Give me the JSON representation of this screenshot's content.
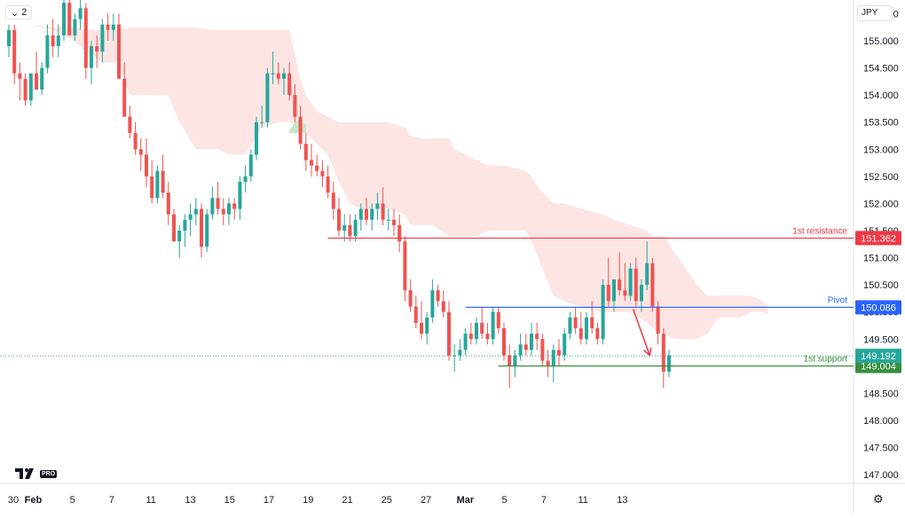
{
  "toolbar": {
    "collapse_label": "2",
    "currency": "JPY"
  },
  "branding": {
    "pro_badge": "PRO"
  },
  "chart_data": {
    "type": "candlestick",
    "ylim": [
      146.8,
      156.1
    ],
    "y_ticks": [
      "147.000",
      "147.500",
      "148.000",
      "148.500",
      "149.000",
      "149.500",
      "150.000",
      "150.500",
      "151.000",
      "151.500",
      "152.000",
      "152.500",
      "153.000",
      "153.500",
      "154.000",
      "154.500",
      "155.000",
      "155.500"
    ],
    "x_ticks": [
      "30",
      "Feb",
      "5",
      "7",
      "11",
      "13",
      "15",
      "17",
      "19",
      "21",
      "25",
      "27",
      "Mar",
      "5",
      "7",
      "11",
      "13"
    ],
    "x_tick_bold": [
      "Feb",
      "Mar"
    ],
    "bar_hours": 4,
    "start_date": "2024-01-30",
    "candles": [
      [
        154.9,
        155.3,
        154.7,
        155.2
      ],
      [
        155.2,
        155.3,
        154.2,
        154.4
      ],
      [
        154.4,
        154.6,
        153.9,
        154.3
      ],
      [
        154.3,
        154.4,
        153.8,
        153.9
      ],
      [
        153.9,
        154.4,
        153.8,
        154.4
      ],
      [
        154.4,
        154.8,
        154.1,
        154.1
      ],
      [
        154.1,
        154.6,
        154.0,
        154.5
      ],
      [
        154.5,
        155.3,
        154.4,
        155.1
      ],
      [
        155.1,
        155.4,
        154.7,
        154.9
      ],
      [
        154.9,
        155.3,
        154.7,
        155.1
      ],
      [
        155.1,
        155.9,
        155.0,
        155.7
      ],
      [
        155.7,
        156.0,
        155.1,
        155.1
      ],
      [
        155.1,
        155.5,
        155.0,
        155.4
      ],
      [
        155.4,
        156.0,
        155.2,
        155.6
      ],
      [
        155.6,
        155.7,
        154.3,
        154.5
      ],
      [
        154.5,
        155.0,
        154.2,
        154.9
      ],
      [
        154.9,
        155.1,
        154.5,
        154.8
      ],
      [
        154.8,
        155.4,
        154.6,
        155.3
      ],
      [
        155.3,
        155.5,
        155.0,
        155.2
      ],
      [
        155.2,
        155.5,
        155.0,
        155.3
      ],
      [
        155.3,
        155.5,
        154.3,
        154.3
      ],
      [
        154.3,
        154.6,
        153.6,
        153.6
      ],
      [
        153.6,
        153.8,
        153.2,
        153.3
      ],
      [
        153.3,
        153.5,
        152.9,
        153.0
      ],
      [
        153.0,
        153.2,
        152.6,
        152.9
      ],
      [
        152.9,
        153.2,
        152.3,
        152.5
      ],
      [
        152.5,
        152.8,
        152.0,
        152.1
      ],
      [
        152.1,
        152.7,
        152.0,
        152.6
      ],
      [
        152.6,
        152.9,
        152.1,
        152.2
      ],
      [
        152.2,
        152.4,
        151.6,
        151.8
      ],
      [
        151.8,
        151.9,
        151.3,
        151.3
      ],
      [
        151.3,
        151.6,
        151.0,
        151.5
      ],
      [
        151.5,
        151.8,
        151.2,
        151.7
      ],
      [
        151.7,
        152.0,
        151.4,
        151.8
      ],
      [
        151.8,
        152.1,
        151.6,
        151.9
      ],
      [
        151.9,
        152.0,
        151.0,
        151.2
      ],
      [
        151.2,
        151.9,
        151.1,
        151.8
      ],
      [
        151.8,
        152.3,
        151.7,
        152.1
      ],
      [
        152.1,
        152.4,
        151.8,
        151.9
      ],
      [
        151.9,
        152.1,
        151.6,
        151.8
      ],
      [
        151.8,
        152.1,
        151.6,
        152.0
      ],
      [
        152.0,
        152.1,
        151.7,
        151.9
      ],
      [
        151.9,
        152.5,
        151.7,
        152.4
      ],
      [
        152.4,
        152.7,
        152.2,
        152.5
      ],
      [
        152.5,
        153.0,
        152.4,
        152.9
      ],
      [
        152.9,
        153.6,
        152.8,
        153.5
      ],
      [
        153.5,
        153.8,
        153.4,
        153.5
      ],
      [
        153.5,
        154.5,
        153.4,
        154.4
      ],
      [
        154.4,
        154.8,
        154.2,
        154.4
      ],
      [
        154.4,
        154.6,
        154.2,
        154.3
      ],
      [
        154.3,
        154.5,
        154.0,
        154.4
      ],
      [
        154.4,
        154.6,
        153.9,
        154.0
      ],
      [
        154.0,
        154.2,
        153.5,
        153.6
      ],
      [
        153.6,
        153.8,
        153.0,
        153.1
      ],
      [
        153.1,
        153.3,
        152.6,
        152.8
      ],
      [
        152.8,
        153.1,
        152.5,
        152.7
      ],
      [
        152.7,
        152.9,
        152.5,
        152.6
      ],
      [
        152.6,
        152.8,
        152.3,
        152.5
      ],
      [
        152.5,
        152.7,
        152.1,
        152.2
      ],
      [
        152.2,
        152.4,
        151.7,
        151.9
      ],
      [
        151.9,
        152.1,
        151.4,
        151.5
      ],
      [
        151.5,
        151.8,
        151.3,
        151.6
      ],
      [
        151.6,
        151.8,
        151.3,
        151.4
      ],
      [
        151.4,
        151.8,
        151.3,
        151.7
      ],
      [
        151.7,
        152.0,
        151.5,
        151.9
      ],
      [
        151.9,
        152.1,
        151.6,
        151.7
      ],
      [
        151.7,
        152.0,
        151.5,
        151.9
      ],
      [
        151.9,
        152.2,
        151.7,
        152.0
      ],
      [
        152.0,
        152.3,
        151.6,
        151.7
      ],
      [
        151.7,
        151.9,
        151.5,
        151.7
      ],
      [
        151.7,
        151.9,
        151.4,
        151.6
      ],
      [
        151.6,
        151.8,
        151.1,
        151.3
      ],
      [
        151.3,
        151.4,
        150.2,
        150.4
      ],
      [
        150.4,
        150.6,
        150.0,
        150.1
      ],
      [
        150.1,
        150.3,
        149.7,
        149.8
      ],
      [
        149.8,
        150.2,
        149.5,
        149.6
      ],
      [
        149.6,
        150.0,
        149.4,
        149.9
      ],
      [
        149.9,
        150.6,
        149.8,
        150.4
      ],
      [
        150.4,
        150.5,
        150.1,
        150.2
      ],
      [
        150.2,
        150.4,
        149.9,
        150.0
      ],
      [
        150.0,
        150.2,
        149.1,
        149.2
      ],
      [
        149.2,
        149.4,
        148.9,
        149.2
      ],
      [
        149.2,
        149.5,
        149.1,
        149.3
      ],
      [
        149.3,
        149.7,
        149.2,
        149.6
      ],
      [
        149.6,
        149.8,
        149.4,
        149.5
      ],
      [
        149.5,
        149.9,
        149.4,
        149.8
      ],
      [
        149.8,
        150.1,
        149.5,
        149.6
      ],
      [
        149.6,
        149.8,
        149.4,
        149.5
      ],
      [
        149.5,
        150.1,
        149.4,
        150.0
      ],
      [
        150.0,
        150.1,
        149.6,
        149.7
      ],
      [
        149.7,
        149.8,
        149.1,
        149.2
      ],
      [
        149.2,
        149.4,
        148.6,
        149.0
      ],
      [
        149.0,
        149.3,
        148.8,
        149.2
      ],
      [
        149.2,
        149.6,
        149.1,
        149.4
      ],
      [
        149.4,
        149.6,
        149.2,
        149.3
      ],
      [
        149.3,
        149.8,
        149.2,
        149.6
      ],
      [
        149.6,
        149.8,
        149.3,
        149.5
      ],
      [
        149.5,
        149.6,
        149.0,
        149.1
      ],
      [
        149.1,
        149.3,
        148.8,
        149.0
      ],
      [
        149.0,
        149.4,
        148.7,
        149.3
      ],
      [
        149.3,
        149.5,
        149.0,
        149.2
      ],
      [
        149.2,
        149.7,
        149.1,
        149.6
      ],
      [
        149.6,
        150.0,
        149.5,
        149.9
      ],
      [
        149.9,
        150.1,
        149.6,
        149.7
      ],
      [
        149.7,
        150.0,
        149.4,
        149.5
      ],
      [
        149.5,
        150.0,
        149.4,
        149.9
      ],
      [
        149.9,
        150.2,
        149.6,
        149.7
      ],
      [
        149.7,
        149.8,
        149.4,
        149.5
      ],
      [
        149.5,
        150.6,
        149.4,
        150.5
      ],
      [
        150.5,
        151.0,
        150.1,
        150.2
      ],
      [
        150.2,
        150.6,
        150.0,
        150.6
      ],
      [
        150.6,
        151.1,
        150.3,
        150.4
      ],
      [
        150.4,
        150.9,
        150.2,
        150.3
      ],
      [
        150.3,
        150.9,
        150.2,
        150.8
      ],
      [
        150.8,
        151.0,
        150.1,
        150.2
      ],
      [
        150.2,
        150.6,
        150.0,
        150.5
      ],
      [
        150.5,
        151.3,
        150.4,
        150.9
      ],
      [
        150.9,
        151.0,
        150.0,
        150.1
      ],
      [
        150.1,
        150.2,
        149.4,
        149.6
      ],
      [
        149.6,
        149.7,
        148.6,
        148.9
      ],
      [
        148.9,
        149.3,
        148.8,
        149.2
      ]
    ],
    "cloud": [
      [
        0,
        155.3,
        155.3
      ],
      [
        3,
        155.3,
        155.3
      ],
      [
        4,
        155.3,
        155.3
      ],
      [
        8,
        155.25,
        155.2
      ],
      [
        12,
        155.25,
        155.0
      ],
      [
        14,
        155.2,
        154.8
      ],
      [
        17,
        155.2,
        154.6
      ],
      [
        20,
        155.2,
        154.6
      ],
      [
        22,
        155.25,
        154.0
      ],
      [
        24,
        155.25,
        154.0
      ],
      [
        29,
        155.25,
        154.0
      ],
      [
        31,
        155.25,
        153.5
      ],
      [
        34,
        155.25,
        153.0
      ],
      [
        37,
        155.2,
        153.0
      ],
      [
        38,
        155.2,
        153.0
      ],
      [
        40,
        155.2,
        152.9
      ],
      [
        43,
        155.2,
        152.9
      ],
      [
        46,
        155.2,
        153.4
      ],
      [
        49,
        155.2,
        153.5
      ],
      [
        51,
        155.2,
        153.5
      ],
      [
        53,
        154.3,
        153.4
      ],
      [
        54,
        154.0,
        153.3
      ],
      [
        56,
        153.7,
        153.1
      ],
      [
        58,
        153.6,
        152.9
      ],
      [
        60,
        153.5,
        152.4
      ],
      [
        62,
        153.5,
        152.0
      ],
      [
        64,
        153.5,
        151.9
      ],
      [
        67,
        153.5,
        151.9
      ],
      [
        69,
        153.5,
        151.9
      ],
      [
        72,
        153.4,
        151.8
      ],
      [
        73,
        153.25,
        151.6
      ],
      [
        75,
        153.2,
        151.6
      ],
      [
        77,
        153.2,
        151.6
      ],
      [
        80,
        153.2,
        151.4
      ],
      [
        81,
        153.0,
        151.4
      ],
      [
        83,
        152.9,
        151.4
      ],
      [
        85,
        152.8,
        151.4
      ],
      [
        87,
        152.7,
        151.5
      ],
      [
        90,
        152.7,
        151.5
      ],
      [
        94,
        152.6,
        151.5
      ],
      [
        95,
        152.5,
        151.3
      ],
      [
        97,
        152.2,
        150.8
      ],
      [
        99,
        152.0,
        150.3
      ],
      [
        101,
        152.0,
        150.2
      ],
      [
        104,
        151.9,
        150.1
      ],
      [
        108,
        151.8,
        150.0
      ],
      [
        110,
        151.7,
        150.0
      ],
      [
        113,
        151.6,
        150.0
      ],
      [
        116,
        151.5,
        149.8
      ],
      [
        117,
        151.4,
        149.7
      ],
      [
        119,
        151.4,
        149.6
      ],
      [
        121,
        151.1,
        149.5
      ],
      [
        123,
        150.8,
        149.5
      ],
      [
        125,
        150.5,
        149.5
      ],
      [
        127,
        150.3,
        149.6
      ],
      [
        129,
        150.3,
        149.9
      ],
      [
        131,
        150.3,
        149.9
      ],
      [
        133,
        150.3,
        149.9
      ],
      [
        135,
        150.3,
        150.0
      ],
      [
        137,
        150.2,
        150.0
      ],
      [
        138,
        150.1,
        149.95
      ]
    ],
    "cloud_bullish_bump": [
      [
        51,
        153.35
      ],
      [
        52,
        153.5
      ],
      [
        53,
        153.55
      ],
      [
        54,
        153.45
      ]
    ],
    "levels": [
      {
        "name": "1st resistance",
        "price": "151.362",
        "value": 151.362,
        "from_bar": 58,
        "color": "#f23645"
      },
      {
        "name": "Pivot",
        "price": "150.086",
        "value": 150.086,
        "from_bar": 83,
        "color": "#2962ff"
      },
      {
        "name": "1st support",
        "price": "149.004",
        "value": 149.004,
        "from_bar": 89,
        "color": "#388e3c"
      }
    ],
    "current_price": {
      "price": "149.192",
      "value": 149.192,
      "color": "#26a69a"
    },
    "arrow": {
      "from": [
        113.5,
        150.05
      ],
      "to": [
        116.5,
        149.2
      ],
      "color": "#f23645"
    },
    "colors": {
      "up": "#26a69a",
      "down": "#ef5350",
      "cloud": "#fde5e4",
      "cloud_bull": "#c8e6c9"
    }
  }
}
